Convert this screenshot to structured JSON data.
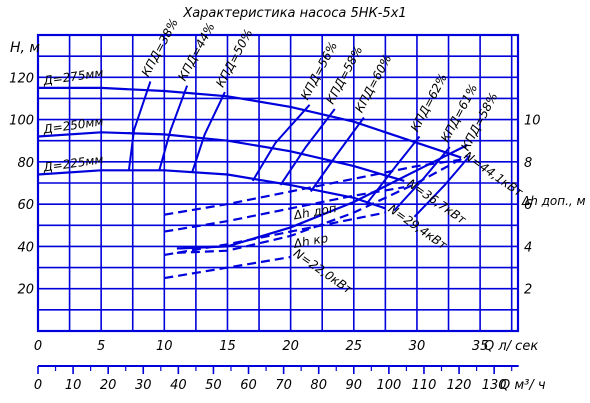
{
  "chart_data": {
    "type": "line",
    "title": "Характеристика насоса 5НК-5х1",
    "ylabel": "Н, м",
    "xlabel": "Q л/ сек",
    "x2label": "Q м³/ ч",
    "y2label": "Δh доп., м",
    "xlim": [
      0,
      38
    ],
    "ylim": [
      0,
      140
    ],
    "y2lim": [
      0,
      14
    ],
    "x_ticks": [
      "0",
      "5",
      "10",
      "15",
      "20",
      "25",
      "30",
      "35"
    ],
    "x2_ticks": [
      "0",
      "10",
      "20",
      "30",
      "40",
      "50",
      "60",
      "70",
      "80",
      "90",
      "100",
      "110",
      "120",
      "130"
    ],
    "y_ticks": [
      "20",
      "40",
      "60",
      "80",
      "100",
      "120"
    ],
    "y2_ticks": [
      "2",
      "4",
      "6",
      "8",
      "10"
    ],
    "grid": true,
    "series": [
      {
        "name": "Д=275мм",
        "style": "solid",
        "x": [
          0,
          5,
          10,
          15,
          20,
          25,
          30,
          33.5
        ],
        "y": [
          115,
          115,
          113.5,
          111,
          106,
          99,
          89,
          82
        ]
      },
      {
        "name": "Д=250мм",
        "style": "solid",
        "x": [
          0,
          5,
          10,
          15,
          20,
          25,
          29
        ],
        "y": [
          92,
          94,
          93,
          90,
          85,
          78,
          71
        ]
      },
      {
        "name": "Д=225мм",
        "style": "solid",
        "x": [
          0,
          5,
          10,
          15,
          20,
          25,
          27.5
        ],
        "y": [
          74,
          76,
          76,
          74,
          69,
          63,
          58
        ]
      },
      {
        "name": "N=44,1кВт",
        "style": "dashed",
        "x": [
          10,
          15,
          20,
          25,
          30,
          33.5
        ],
        "y": [
          55,
          60,
          66,
          72,
          78,
          81
        ]
      },
      {
        "name": "N=36,7кВт",
        "style": "dashed",
        "x": [
          10,
          15,
          20,
          25,
          29
        ],
        "y": [
          47,
          52,
          58,
          64,
          68
        ]
      },
      {
        "name": "N=29,4кВт",
        "style": "dashed",
        "x": [
          10,
          15,
          20,
          25,
          27.5
        ],
        "y": [
          36,
          41,
          47,
          53,
          56
        ]
      },
      {
        "name": "N=22,0кВт",
        "style": "dashed",
        "x": [
          10,
          15,
          20
        ],
        "y": [
          25,
          30,
          35
        ]
      },
      {
        "name": "Δh доп",
        "style": "solid",
        "axis": "y2",
        "x": [
          11,
          15,
          20,
          25,
          30,
          34
        ],
        "y": [
          3.9,
          4.0,
          4.9,
          6.1,
          7.6,
          8.8
        ]
      },
      {
        "name": "Δh кр",
        "style": "dashed",
        "axis": "y2",
        "x": [
          11,
          15,
          20,
          25,
          30,
          34
        ],
        "y": [
          3.7,
          3.8,
          4.5,
          5.6,
          7.0,
          8.3
        ]
      }
    ],
    "efficiency_curves": [
      {
        "name": "КПД=38%",
        "x": [
          8.9,
          7.6,
          7.2
        ],
        "y": [
          118,
          95,
          76
        ]
      },
      {
        "name": "КПД=44%",
        "x": [
          11.8,
          10.5,
          9.6
        ],
        "y": [
          116,
          95,
          76
        ]
      },
      {
        "name": "КПД=50%",
        "x": [
          14.8,
          13.2,
          12.2
        ],
        "y": [
          113,
          93,
          75
        ]
      },
      {
        "name": "КПД=56%",
        "x": [
          21.5,
          18.8,
          17
        ],
        "y": [
          107,
          89,
          71
        ]
      },
      {
        "name": "КПД=58%",
        "x": [
          23.5,
          21.2,
          19.2
        ],
        "y": [
          105,
          87,
          69
        ]
      },
      {
        "name": "КПД=60%",
        "x": [
          25.8,
          23.6,
          21.6
        ],
        "y": [
          101,
          83,
          66
        ]
      },
      {
        "name": "КПД=62%",
        "x": [
          30.2,
          28.2,
          26
        ],
        "y": [
          92,
          77,
          60
        ]
      },
      {
        "name": "КПД=61%",
        "x": [
          32.6,
          30.5,
          28.2
        ],
        "y": [
          87,
          72,
          57
        ]
      },
      {
        "name": "КПД=58%",
        "x": [
          34.2,
          32.2,
          29.8
        ],
        "y": [
          83,
          69,
          54
        ]
      }
    ],
    "colors": {
      "grid": "#0000dd",
      "curve": "#0000dd",
      "text": "#000000"
    }
  }
}
